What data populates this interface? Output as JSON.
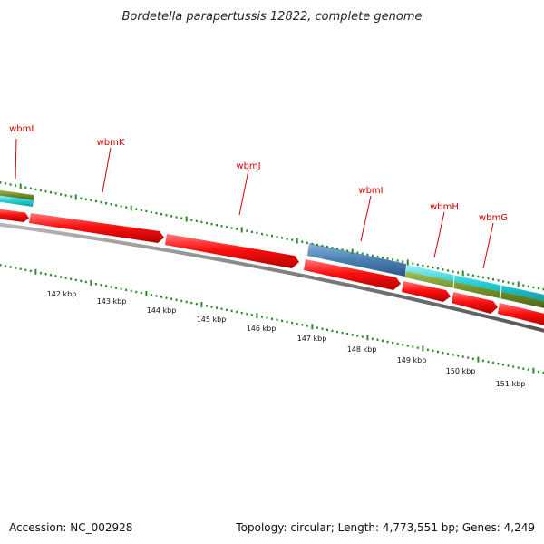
{
  "title": "Bordetella parapertussis 12822, complete genome",
  "footer": {
    "accession": "Accession: NC_002928",
    "summary": "Topology: circular; Length: 4,773,551 bp; Genes: 4,249"
  },
  "colors": {
    "cds": "#ff0000",
    "cds_blue": "#4a80b4",
    "cds_cyan": "#22cfd6",
    "cds_olive": "#6f8f2a",
    "tick": "#2a8a2a",
    "backbone": "#808080",
    "label": "#d40000"
  },
  "gene_labels": [
    "wbmL",
    "wbmK",
    "wbmJ",
    "wbmI",
    "wbmH",
    "wbmG"
  ],
  "kbp_labels": [
    "142 kbp",
    "143 kbp",
    "144 kbp",
    "145 kbp",
    "146 kbp",
    "147 kbp",
    "148 kbp",
    "149 kbp",
    "150 kbp",
    "151 kbp"
  ]
}
